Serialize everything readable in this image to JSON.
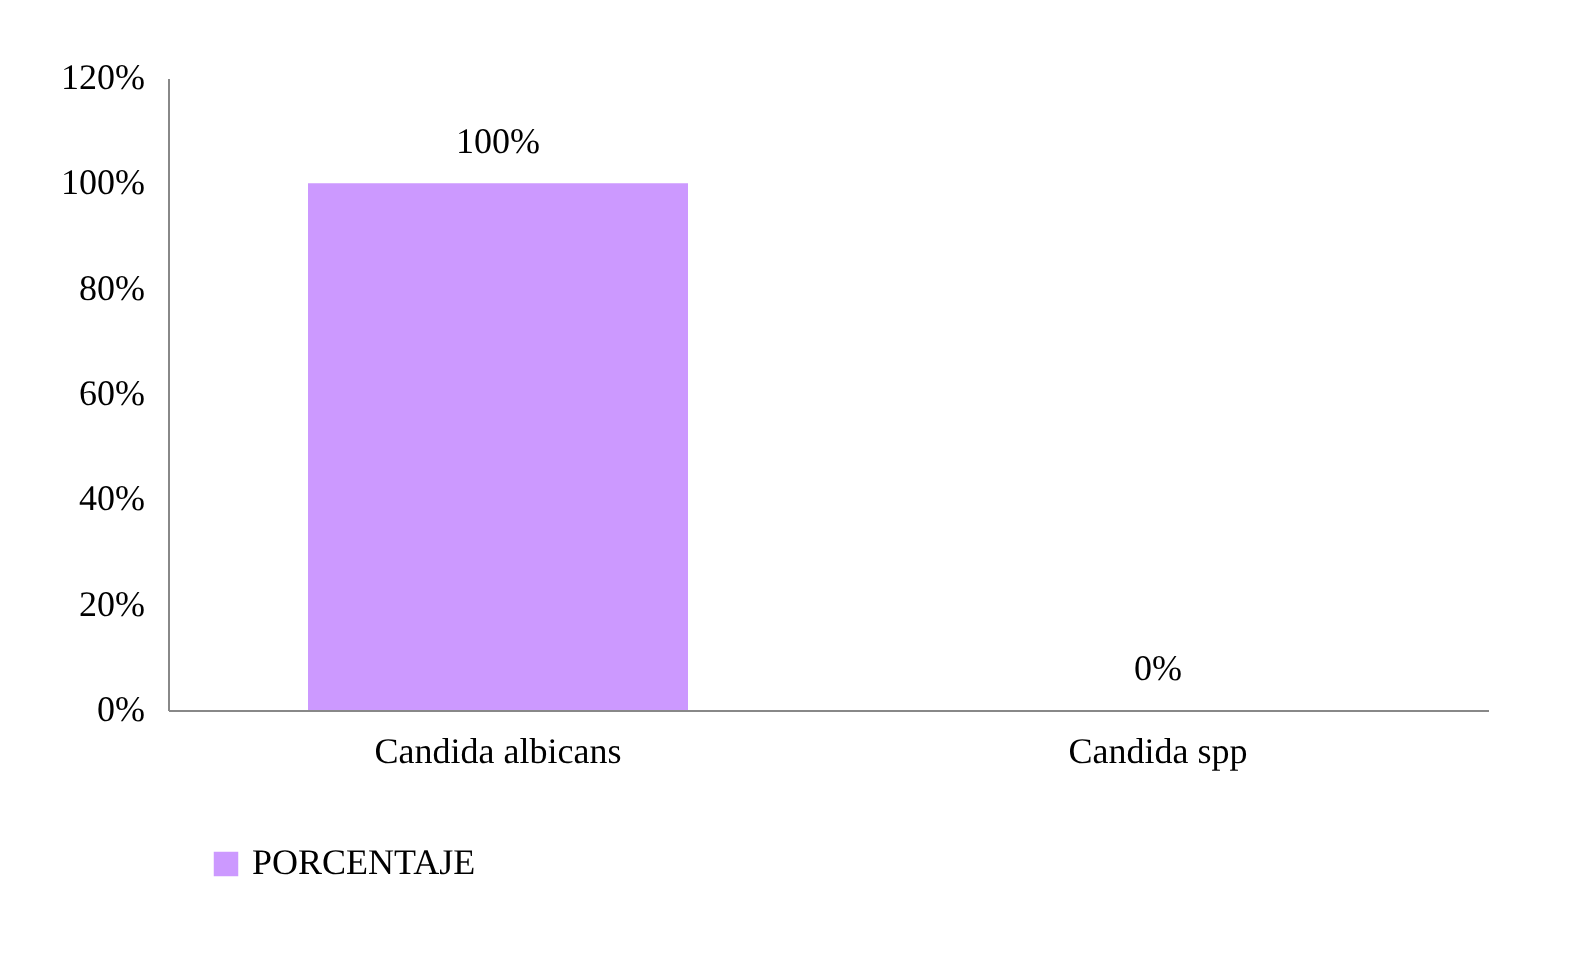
{
  "chart_data": {
    "type": "bar",
    "categories": [
      "Candida albicans",
      "Candida spp"
    ],
    "series": [
      {
        "name": "PORCENTAJE",
        "color": "#cc99ff",
        "values": [
          100,
          0
        ],
        "value_labels": [
          "100%",
          "0%"
        ]
      }
    ],
    "ylim": [
      0,
      120
    ],
    "yticks": [
      {
        "value": 0,
        "label": "0%"
      },
      {
        "value": 20,
        "label": "20%"
      },
      {
        "value": 40,
        "label": "40%"
      },
      {
        "value": 60,
        "label": "60%"
      },
      {
        "value": 80,
        "label": "80%"
      },
      {
        "value": 100,
        "label": "100%"
      },
      {
        "value": 120,
        "label": "120%"
      }
    ],
    "grid": false,
    "legend": "bottom"
  }
}
